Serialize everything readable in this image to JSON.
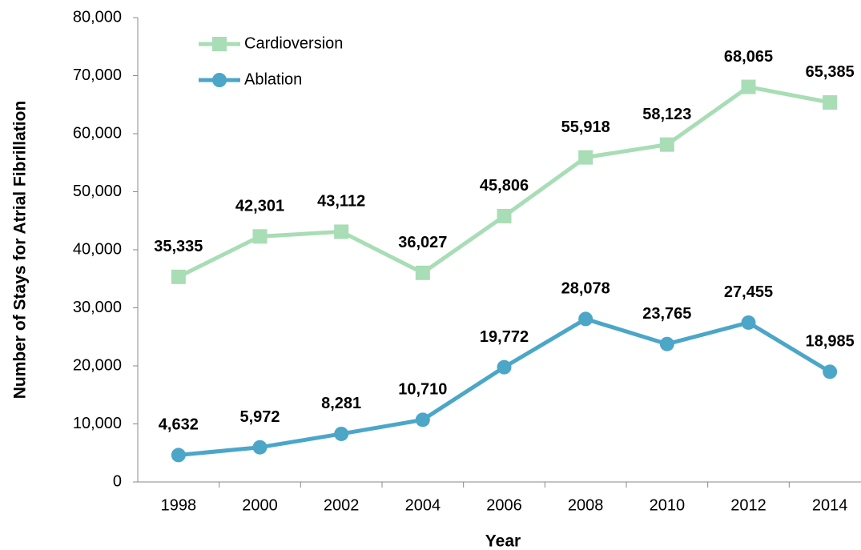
{
  "chart_data": {
    "type": "line",
    "x_label": "Year",
    "y_label": "Number of Stays for Atrial Fibrillation",
    "categories": [
      "1998",
      "2000",
      "2002",
      "2004",
      "2006",
      "2008",
      "2010",
      "2012",
      "2014"
    ],
    "series": [
      {
        "name": "Cardioversion",
        "color": "#a8ddb5",
        "marker": "square",
        "values": [
          35335,
          42301,
          43112,
          36027,
          45806,
          55918,
          58123,
          68065,
          65385
        ],
        "value_labels": [
          "35,335",
          "42,301",
          "43,112",
          "36,027",
          "45,806",
          "55,918",
          "58,123",
          "68,065",
          "65,385"
        ]
      },
      {
        "name": "Ablation",
        "color": "#4ba6c8",
        "marker": "circle",
        "values": [
          4632,
          5972,
          8281,
          10710,
          19772,
          28078,
          23765,
          27455,
          18985
        ],
        "value_labels": [
          "4,632",
          "5,972",
          "8,281",
          "10,710",
          "19,772",
          "28,078",
          "23,765",
          "27,455",
          "18,985"
        ]
      }
    ],
    "ylim": [
      0,
      80000
    ],
    "yticks": [
      0,
      {
        "value": 10000,
        "label": "10,000"
      },
      {
        "value": 20000,
        "label": "20,000"
      },
      {
        "value": 30000,
        "label": "30,000"
      },
      {
        "value": 40000,
        "label": "40,000"
      },
      {
        "value": 50000,
        "label": "50,000"
      },
      {
        "value": 60000,
        "label": "60,000"
      },
      {
        "value": 70000,
        "label": "70,000"
      },
      {
        "value": 80000,
        "label": "80,000"
      }
    ],
    "grid": false,
    "legend": "top-left"
  }
}
